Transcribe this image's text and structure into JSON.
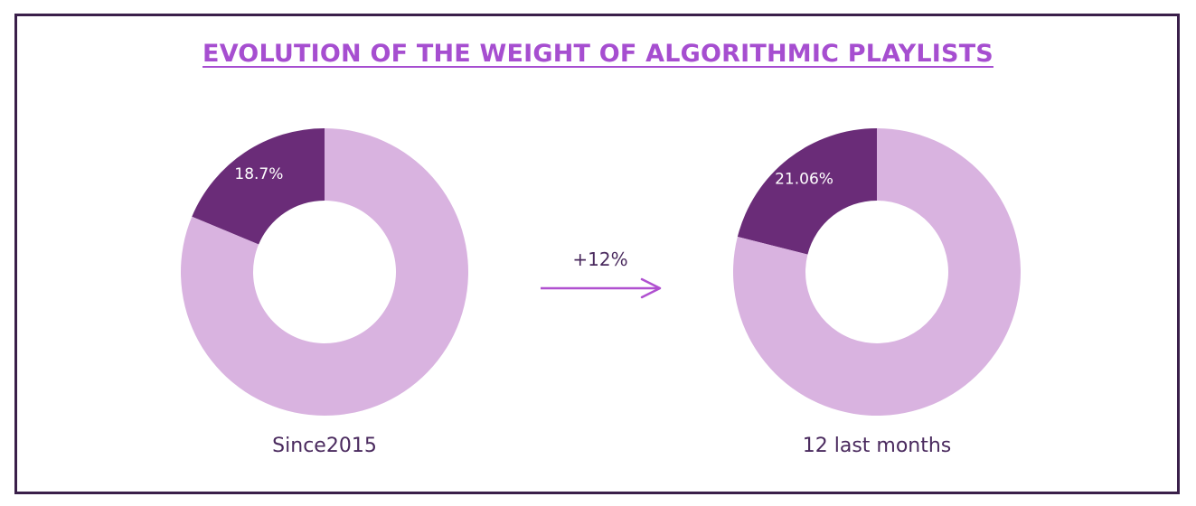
{
  "title": "EVOLUTION OF THE WEIGHT OF ALGORITHMIC PLAYLISTS",
  "delta_label": "+12%",
  "colors": {
    "highlight": "#6a2c78",
    "rest": "#d9b3e0",
    "title": "#a64ed0",
    "arrow": "#b050d0",
    "text": "#4a2a5e",
    "label_text": "#ffffff"
  },
  "chart_data": [
    {
      "type": "pie",
      "title": "Since2015",
      "slices": [
        {
          "value": 18.7,
          "label": "18.7%"
        },
        {
          "value": 81.3,
          "label": ""
        }
      ]
    },
    {
      "type": "pie",
      "title": "12 last months",
      "slices": [
        {
          "value": 21.06,
          "label": "21.06%"
        },
        {
          "value": 78.94,
          "label": ""
        }
      ]
    }
  ]
}
